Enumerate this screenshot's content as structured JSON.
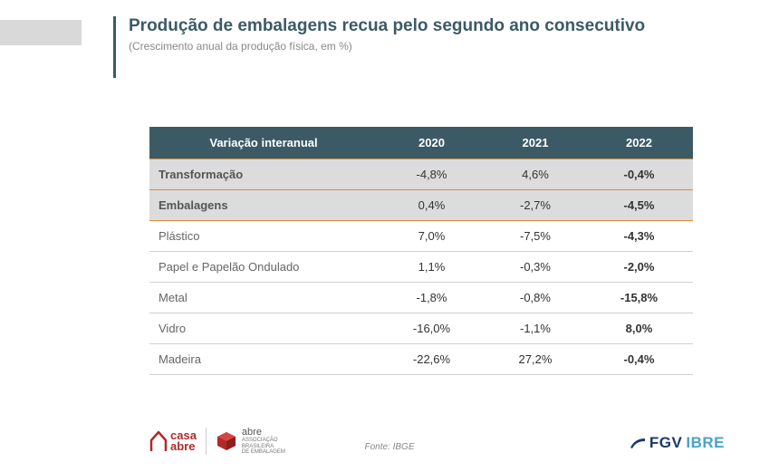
{
  "header": {
    "title": "Produção de embalagens recua pelo segundo ano consecutivo",
    "subtitle": "(Crescimento anual da produção física, em %)"
  },
  "table": {
    "header": {
      "label": "Variação interanual",
      "c2020": "2020",
      "c2021": "2021",
      "c2022": "2022"
    },
    "rows": [
      {
        "label": "Transformação",
        "c2020": "-4,8%",
        "c2021": "4,6%",
        "c2022": "-0,4%",
        "highlight": true
      },
      {
        "label": "Embalagens",
        "c2020": "0,4%",
        "c2021": "-2,7%",
        "c2022": "-4,5%",
        "highlight": true
      },
      {
        "label": "Plástico",
        "c2020": "7,0%",
        "c2021": "-7,5%",
        "c2022": "-4,3%",
        "highlight": false
      },
      {
        "label": "Papel e Papelão Ondulado",
        "c2020": "1,1%",
        "c2021": "-0,3%",
        "c2022": "-2,0%",
        "highlight": false
      },
      {
        "label": "Metal",
        "c2020": "-1,8%",
        "c2021": "-0,8%",
        "c2022": "-15,8%",
        "highlight": false
      },
      {
        "label": "Vidro",
        "c2020": "-16,0%",
        "c2021": "-1,1%",
        "c2022": "8,0%",
        "highlight": false
      },
      {
        "label": "Madeira",
        "c2020": "-22,6%",
        "c2021": "27,2%",
        "c2022": "-0,4%",
        "highlight": false
      }
    ]
  },
  "source": "Fonte: IBGE",
  "logos": {
    "casa_abre_line1": "casa",
    "casa_abre_line2": "abre",
    "abre_label": "abre",
    "abre_sub1": "ASSOCIAÇÃO",
    "abre_sub2": "BRASILEIRA",
    "abre_sub3": "DE EMBALAGEM",
    "fgv": "FGV",
    "ibre": "IBRE"
  },
  "colors": {
    "header_bg": "#3c5a66",
    "highlight_bg": "#dcdcdc",
    "highlight_border": "#e08b3d",
    "title_color": "#3c5a66",
    "brand_red": "#b02a2a",
    "fgv_blue": "#1a3a66",
    "ibre_blue": "#4aa3c4"
  }
}
